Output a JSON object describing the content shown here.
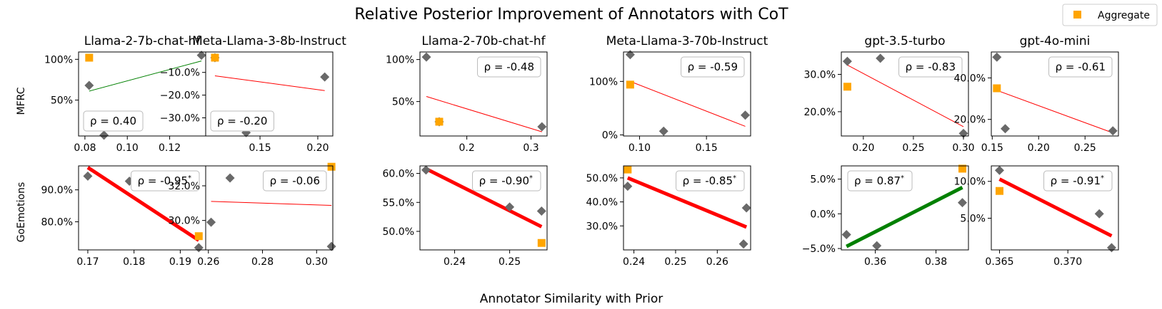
{
  "chart_data": {
    "type": "scatter",
    "title": "Relative Posterior Improvement of Annotators with CoT",
    "xlabel": "Annotator Similarity with Prior",
    "legend": {
      "label": "Aggregate",
      "color": "#FFA500",
      "placement": "top-right"
    },
    "colors": {
      "point": "#696969",
      "aggregate": "#FFA500",
      "neg_line": "#FF0000",
      "pos_line": "#008000"
    },
    "row_labels": [
      "MFRC",
      "GoEmotions"
    ],
    "col_titles": [
      "Llama-2-7b-chat-hf",
      "Meta-Llama-3-8b-Instruct",
      "Llama-2-70b-chat-hf",
      "Meta-Llama-3-70b-Instruct",
      "gpt-3.5-turbo",
      "gpt-4o-mini"
    ],
    "panels": [
      {
        "row": 0,
        "col": 0,
        "xlim": [
          0.077,
          0.137
        ],
        "ylim": [
          0.06,
          1.09
        ],
        "xticks": [
          0.08,
          0.1,
          0.12
        ],
        "xticklabels": [
          "0.08",
          "0.10",
          "0.12"
        ],
        "yticks": [
          0.5,
          1.0
        ],
        "yticklabels": [
          "50%",
          "100%"
        ],
        "points": [
          [
            0.082,
            0.68
          ],
          [
            0.089,
            0.07
          ],
          [
            0.135,
            1.05
          ]
        ],
        "aggregate": [
          0.082,
          1.02
        ],
        "fit": [
          [
            0.082,
            0.61
          ],
          [
            0.135,
            0.98
          ]
        ],
        "fit_color": "green",
        "bold": false,
        "rho": "ρ = 0.40",
        "rho_pos": "bottom-left"
      },
      {
        "row": 0,
        "col": 1,
        "xlim": [
          0.103,
          0.213
        ],
        "ylim": [
          -0.38,
          -0.01
        ],
        "xticks": [
          0.15,
          0.2
        ],
        "xticklabels": [
          "0.15",
          "0.20"
        ],
        "yticks": [
          -0.1,
          -0.2,
          -0.3
        ],
        "yticklabels": [
          "−10.0%",
          "−20.0%",
          "−30.0%"
        ],
        "points": [
          [
            0.111,
            -0.035
          ],
          [
            0.138,
            -0.365
          ],
          [
            0.206,
            -0.12
          ]
        ],
        "aggregate": [
          0.111,
          -0.035
        ],
        "fit": [
          [
            0.111,
            -0.115
          ],
          [
            0.206,
            -0.18
          ]
        ],
        "fit_color": "red",
        "bold": false,
        "rho": "ρ = -0.20",
        "rho_pos": "bottom-left"
      },
      {
        "row": 0,
        "col": 2,
        "xlim": [
          0.127,
          0.325
        ],
        "ylim": [
          0.09,
          1.09
        ],
        "xticks": [
          0.2,
          0.3
        ],
        "xticklabels": [
          "0.2",
          "0.3"
        ],
        "yticks": [
          0.5,
          1.0
        ],
        "yticklabels": [
          "50%",
          "100%"
        ],
        "points": [
          [
            0.137,
            1.03
          ],
          [
            0.157,
            0.26
          ],
          [
            0.317,
            0.2
          ]
        ],
        "aggregate": [
          0.157,
          0.26
        ],
        "fit": [
          [
            0.137,
            0.56
          ],
          [
            0.317,
            0.14
          ]
        ],
        "fit_color": "red",
        "bold": false,
        "rho": "ρ = -0.48",
        "rho_pos": "top-right"
      },
      {
        "row": 0,
        "col": 3,
        "xlim": [
          0.088,
          0.183
        ],
        "ylim": [
          -0.02,
          1.55
        ],
        "xticks": [
          0.1,
          0.15
        ],
        "xticklabels": [
          "0.10",
          "0.15"
        ],
        "yticks": [
          0.0,
          1.0
        ],
        "yticklabels": [
          "0%",
          "100%"
        ],
        "points": [
          [
            0.093,
            1.5
          ],
          [
            0.118,
            0.07
          ],
          [
            0.179,
            0.37
          ]
        ],
        "aggregate": [
          0.093,
          0.94
        ],
        "fit": [
          [
            0.093,
            1.0
          ],
          [
            0.179,
            0.16
          ]
        ],
        "fit_color": "red",
        "bold": false,
        "rho": "ρ = -0.59",
        "rho_pos": "top-right"
      },
      {
        "row": 0,
        "col": 4,
        "xlim": [
          0.178,
          0.305
        ],
        "ylim": [
          0.135,
          0.36
        ],
        "xticks": [
          0.2,
          0.25,
          0.3
        ],
        "xticklabels": [
          "0.20",
          "0.25",
          "0.30"
        ],
        "yticks": [
          0.2,
          0.3
        ],
        "yticklabels": [
          "20.0%",
          "30.0%"
        ],
        "points": [
          [
            0.184,
            0.335
          ],
          [
            0.217,
            0.343
          ],
          [
            0.3,
            0.142
          ]
        ],
        "aggregate": [
          0.184,
          0.267
        ],
        "fit": [
          [
            0.184,
            0.325
          ],
          [
            0.3,
            0.16
          ]
        ],
        "fit_color": "red",
        "bold": false,
        "rho": "ρ = -0.83",
        "rho_pos": "top-right"
      },
      {
        "row": 0,
        "col": 5,
        "xlim": [
          0.149,
          0.286
        ],
        "ylim": [
          0.12,
          0.525
        ],
        "xticks": [
          0.15,
          0.2,
          0.25
        ],
        "xticklabels": [
          "0.15",
          "0.20",
          "0.25"
        ],
        "yticks": [
          0.2,
          0.4
        ],
        "yticklabels": [
          "20.0%",
          "40.0%"
        ],
        "points": [
          [
            0.155,
            0.5
          ],
          [
            0.164,
            0.155
          ],
          [
            0.28,
            0.145
          ]
        ],
        "aggregate": [
          0.155,
          0.35
        ],
        "fit": [
          [
            0.155,
            0.34
          ],
          [
            0.28,
            0.135
          ]
        ],
        "fit_color": "red",
        "bold": false,
        "rho": "ρ = -0.61",
        "rho_pos": "top-right"
      },
      {
        "row": 1,
        "col": 0,
        "xlim": [
          0.168,
          0.1955
        ],
        "ylim": [
          0.712,
          0.975
        ],
        "xticks": [
          0.17,
          0.18,
          0.19
        ],
        "xticklabels": [
          "0.17",
          "0.18",
          "0.19"
        ],
        "yticks": [
          0.8,
          0.9
        ],
        "yticklabels": [
          "80.0%",
          "90.0%"
        ],
        "points": [
          [
            0.17,
            0.943
          ],
          [
            0.179,
            0.927
          ],
          [
            0.194,
            0.719
          ]
        ],
        "aggregate": [
          0.194,
          0.755
        ],
        "fit": [
          [
            0.17,
            0.97
          ],
          [
            0.194,
            0.742
          ]
        ],
        "fit_color": "red",
        "bold": true,
        "rho": "ρ = -0.95*",
        "rho_pos": "top-right"
      },
      {
        "row": 1,
        "col": 1,
        "xlim": [
          0.259,
          0.306
        ],
        "ylim": [
          0.283,
          0.3315
        ],
        "xticks": [
          0.26,
          0.28,
          0.3
        ],
        "xticklabels": [
          "0.26",
          "0.28",
          "0.30"
        ],
        "yticks": [
          0.3,
          0.32
        ],
        "yticklabels": [
          "30.0%",
          "32.0%"
        ],
        "points": [
          [
            0.261,
            0.299
          ],
          [
            0.268,
            0.3245
          ],
          [
            0.3055,
            0.285
          ]
        ],
        "aggregate": [
          0.3055,
          0.331
        ],
        "fit": [
          [
            0.261,
            0.311
          ],
          [
            0.3055,
            0.3087
          ]
        ],
        "fit_color": "red",
        "bold": false,
        "rho": "ρ = -0.06",
        "rho_pos": "top-right"
      },
      {
        "row": 1,
        "col": 2,
        "xlim": [
          0.2337,
          0.2568
        ],
        "ylim": [
          0.468,
          0.613
        ],
        "xticks": [
          0.24,
          0.25
        ],
        "xticklabels": [
          "0.24",
          "0.25"
        ],
        "yticks": [
          0.5,
          0.55,
          0.6
        ],
        "yticklabels": [
          "50.0%",
          "55.0%",
          "60.0%"
        ],
        "points": [
          [
            0.2348,
            0.606
          ],
          [
            0.25,
            0.542
          ],
          [
            0.2558,
            0.535
          ]
        ],
        "aggregate": [
          0.2558,
          0.48
        ],
        "fit": [
          [
            0.2348,
            0.608
          ],
          [
            0.2558,
            0.508
          ]
        ],
        "fit_color": "red",
        "bold": true,
        "rho": "ρ = -0.90*",
        "rho_pos": "top-right"
      },
      {
        "row": 1,
        "col": 3,
        "xlim": [
          0.2375,
          0.268
        ],
        "ylim": [
          0.2,
          0.55
        ],
        "xticks": [
          0.24,
          0.25,
          0.26
        ],
        "xticklabels": [
          "0.24",
          "0.25",
          "0.26"
        ],
        "yticks": [
          0.3,
          0.4,
          0.5
        ],
        "yticklabels": [
          "30.0%",
          "40.0%",
          "50.0%"
        ],
        "points": [
          [
            0.2385,
            0.465
          ],
          [
            0.2663,
            0.225
          ],
          [
            0.267,
            0.375
          ]
        ],
        "aggregate": [
          0.2385,
          0.535
        ],
        "fit": [
          [
            0.2385,
            0.5
          ],
          [
            0.267,
            0.295
          ]
        ],
        "fit_color": "red",
        "bold": true,
        "rho": "ρ = -0.85*",
        "rho_pos": "top-right"
      },
      {
        "row": 1,
        "col": 4,
        "xlim": [
          0.3488,
          0.3907
        ],
        "ylim": [
          -0.052,
          0.069
        ],
        "xticks": [
          0.36,
          0.38
        ],
        "xticklabels": [
          "0.36",
          "0.38"
        ],
        "yticks": [
          -0.05,
          0.0,
          0.05
        ],
        "yticklabels": [
          "−5.0%",
          "0.0%",
          "5.0%"
        ],
        "points": [
          [
            0.3505,
            -0.03
          ],
          [
            0.3605,
            -0.046
          ],
          [
            0.3887,
            0.016
          ]
        ],
        "aggregate": [
          0.3887,
          0.065
        ],
        "fit": [
          [
            0.3505,
            -0.047
          ],
          [
            0.3887,
            0.038
          ]
        ],
        "fit_color": "green",
        "bold": true,
        "rho": "ρ = 0.87*",
        "rho_pos": "top-left"
      },
      {
        "row": 1,
        "col": 5,
        "xlim": [
          0.3644,
          0.3737
        ],
        "ylim": [
          0.007,
          0.121
        ],
        "xticks": [
          0.365,
          0.37
        ],
        "xticklabels": [
          "0.365",
          "0.370"
        ],
        "yticks": [
          0.05,
          0.1
        ],
        "yticklabels": [
          "5.0%",
          "10.0%"
        ],
        "points": [
          [
            0.365,
            0.115
          ],
          [
            0.3723,
            0.056
          ],
          [
            0.3732,
            0.01
          ]
        ],
        "aggregate": [
          0.365,
          0.087
        ],
        "fit": [
          [
            0.365,
            0.103
          ],
          [
            0.3732,
            0.026
          ]
        ],
        "fit_color": "red",
        "bold": true,
        "rho": "ρ = -0.91*",
        "rho_pos": "top-right"
      }
    ]
  }
}
